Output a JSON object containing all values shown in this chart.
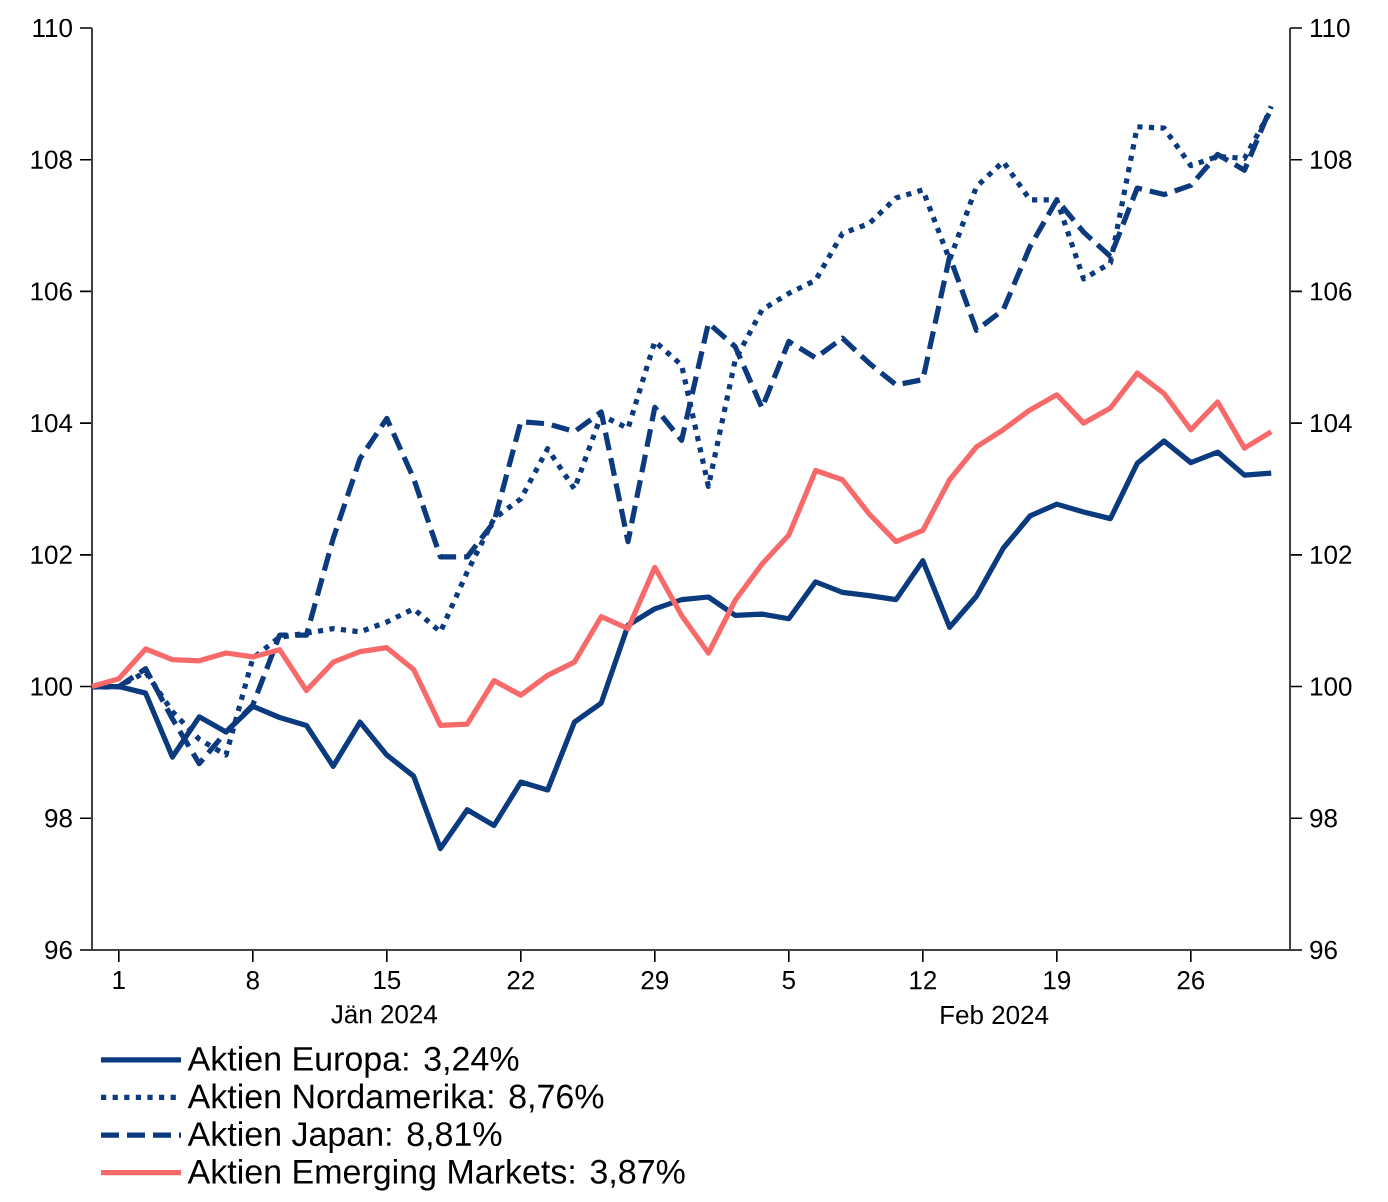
{
  "chart_data": {
    "type": "line",
    "categories": [
      null,
      "1",
      null,
      null,
      null,
      null,
      "8",
      null,
      null,
      null,
      null,
      "15",
      null,
      null,
      null,
      null,
      "22",
      null,
      null,
      null,
      null,
      "29",
      null,
      null,
      null,
      null,
      "5",
      null,
      null,
      null,
      null,
      "12",
      null,
      null,
      null,
      null,
      "19",
      null,
      null,
      null,
      null,
      "26",
      null,
      null,
      null
    ],
    "series": [
      {
        "name": "Aktien Europa: 3,24%",
        "color": "#0b3a7e",
        "line_style": "solid",
        "values": [
          100.0,
          100.0,
          99.9,
          98.93,
          99.54,
          99.31,
          99.7,
          99.53,
          99.41,
          98.79,
          99.46,
          98.96,
          98.64,
          97.54,
          98.13,
          97.89,
          98.55,
          98.43,
          99.46,
          99.75,
          100.93,
          101.18,
          101.32,
          101.36,
          101.08,
          101.1,
          101.03,
          101.59,
          101.43,
          101.38,
          101.32,
          101.91,
          100.9,
          101.37,
          102.1,
          102.59,
          102.77,
          102.65,
          102.55,
          103.39,
          103.73,
          103.4,
          103.56,
          103.21,
          103.24
        ]
      },
      {
        "name": "Aktien Nordamerika: 8,76%",
        "color": "#0b3a7e",
        "line_style": "dotted",
        "values": [
          100.0,
          100.0,
          100.22,
          99.62,
          99.2,
          98.96,
          100.43,
          100.75,
          100.81,
          100.88,
          100.83,
          100.98,
          101.18,
          100.83,
          101.74,
          102.55,
          102.85,
          103.61,
          103.0,
          104.12,
          103.92,
          105.24,
          104.88,
          103.04,
          104.96,
          105.72,
          105.97,
          106.17,
          106.88,
          107.03,
          107.42,
          107.54,
          106.48,
          107.59,
          107.97,
          107.39,
          107.39,
          106.19,
          106.43,
          108.5,
          108.48,
          107.91,
          108.05,
          108.02,
          108.76
        ]
      },
      {
        "name": "Aktien Japan: 8,81%",
        "color": "#0b3a7e",
        "line_style": "dashed",
        "values": [
          100.0,
          100.0,
          100.27,
          99.51,
          98.83,
          99.31,
          99.72,
          100.78,
          100.78,
          102.25,
          103.46,
          104.07,
          103.16,
          101.97,
          101.97,
          102.5,
          104.02,
          103.99,
          103.87,
          104.17,
          102.2,
          104.24,
          103.74,
          105.52,
          105.16,
          104.23,
          105.24,
          104.99,
          105.29,
          104.91,
          104.58,
          104.66,
          106.53,
          105.41,
          105.72,
          106.68,
          107.39,
          106.9,
          106.53,
          107.57,
          107.47,
          107.61,
          108.08,
          107.84,
          108.81
        ]
      },
      {
        "name": "Aktien Emerging Markets: 3,87%",
        "color": "#f86a6a",
        "line_style": "solid",
        "values": [
          100.0,
          100.12,
          100.57,
          100.41,
          100.39,
          100.51,
          100.45,
          100.56,
          99.94,
          100.37,
          100.53,
          100.59,
          100.26,
          99.41,
          99.43,
          100.09,
          99.87,
          100.17,
          100.37,
          101.06,
          100.88,
          101.81,
          101.08,
          100.51,
          101.31,
          101.86,
          102.3,
          103.28,
          103.14,
          102.62,
          102.2,
          102.37,
          103.14,
          103.64,
          103.9,
          104.2,
          104.43,
          104.0,
          104.23,
          104.76,
          104.45,
          103.9,
          104.32,
          103.62,
          103.87
        ]
      }
    ],
    "ylim": [
      96,
      110
    ],
    "yticks": [
      96,
      98,
      100,
      102,
      104,
      106,
      108,
      110
    ],
    "y2lim": [
      96,
      110
    ],
    "y2ticks": [
      96,
      98,
      100,
      102,
      104,
      106,
      108,
      110
    ],
    "annotations": [
      "Jän 2024",
      "Feb 2024"
    ],
    "legend": "bottom left",
    "grid": false
  }
}
